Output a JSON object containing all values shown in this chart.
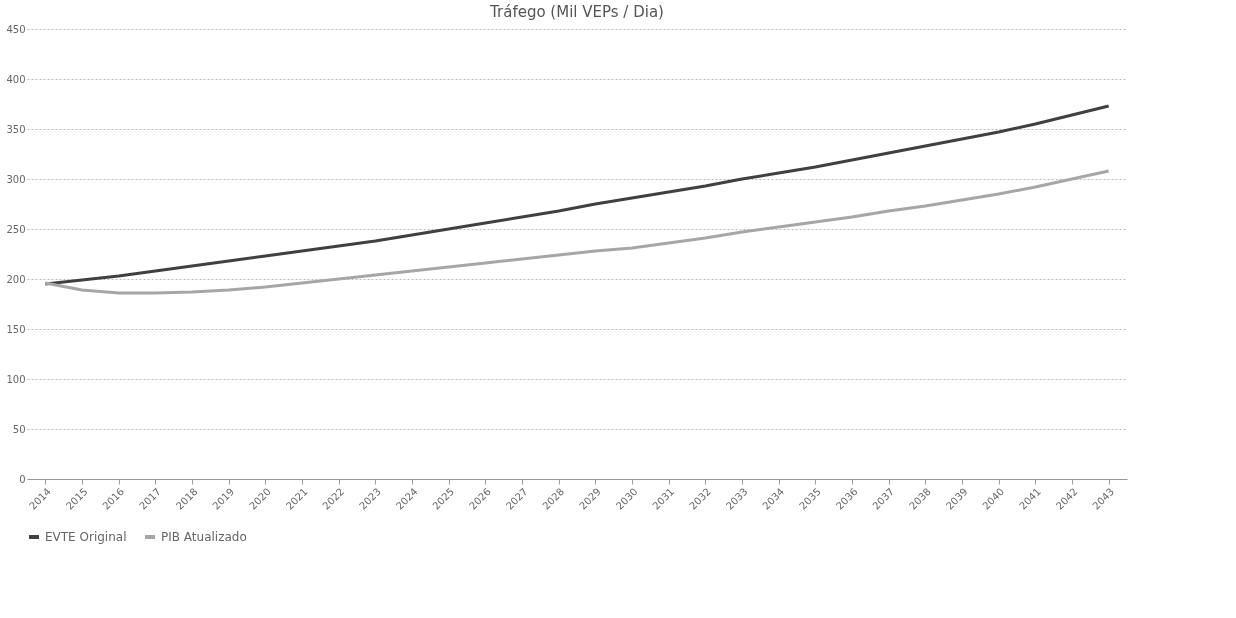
{
  "chart_data": {
    "type": "line",
    "title": "Tráfego (Mil VEPs / Dia)",
    "categories": [
      "2014",
      "2015",
      "2016",
      "2017",
      "2018",
      "2019",
      "2020",
      "2021",
      "2022",
      "2023",
      "2024",
      "2025",
      "2026",
      "2027",
      "2028",
      "2029",
      "2030",
      "2031",
      "2032",
      "2033",
      "2034",
      "2035",
      "2036",
      "2037",
      "2038",
      "2039",
      "2040",
      "2041",
      "2042",
      "2043"
    ],
    "series": [
      {
        "name": "EVTE Original",
        "color": "#404040",
        "values": [
          195,
          199,
          203,
          208,
          213,
          218,
          223,
          228,
          233,
          238,
          244,
          250,
          256,
          262,
          268,
          275,
          281,
          287,
          293,
          300,
          306,
          312,
          319,
          326,
          333,
          340,
          347,
          355,
          364,
          373
        ]
      },
      {
        "name": "PIB Atualizado",
        "color": "#a6a6a6",
        "values": [
          196,
          189,
          186,
          186,
          187,
          189,
          192,
          196,
          200,
          204,
          208,
          212,
          216,
          220,
          224,
          228,
          231,
          236,
          241,
          247,
          252,
          257,
          262,
          268,
          273,
          279,
          285,
          292,
          300,
          308
        ]
      }
    ],
    "ylim": [
      0,
      450
    ],
    "yticks": [
      0,
      50,
      100,
      150,
      200,
      250,
      300,
      350,
      400,
      450
    ],
    "grid": "y",
    "legend": "bottom",
    "marker": "none",
    "line_style": "solid"
  }
}
